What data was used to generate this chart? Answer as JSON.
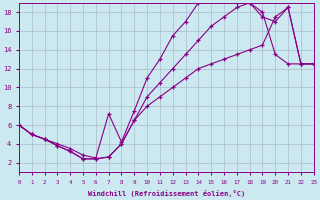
{
  "xlabel": "Windchill (Refroidissement éolien,°C)",
  "background_color": "#cce8f0",
  "grid_color": "#aabccc",
  "line_color": "#880088",
  "xlim": [
    0,
    23
  ],
  "ylim": [
    1,
    19
  ],
  "xticks": [
    0,
    1,
    2,
    3,
    4,
    5,
    6,
    7,
    8,
    9,
    10,
    11,
    12,
    13,
    14,
    15,
    16,
    17,
    18,
    19,
    20,
    21,
    22,
    23
  ],
  "yticks": [
    2,
    4,
    6,
    8,
    10,
    12,
    14,
    16,
    18
  ],
  "curve_upper_x": [
    0,
    1,
    2,
    3,
    4,
    5,
    6,
    7,
    8,
    9,
    10,
    11,
    12,
    13,
    14,
    15,
    16,
    17,
    18,
    19,
    20,
    21,
    22,
    23
  ],
  "curve_upper_y": [
    6.0,
    5.0,
    4.5,
    4.0,
    3.5,
    2.8,
    2.5,
    7.2,
    4.2,
    7.5,
    11.0,
    13.0,
    15.5,
    17.0,
    19.0,
    19.3,
    19.3,
    19.0,
    19.0,
    18.0,
    13.5,
    12.5,
    12.5,
    12.5
  ],
  "curve_mid_x": [
    0,
    1,
    2,
    3,
    4,
    5,
    6,
    7,
    8,
    9,
    10,
    11,
    12,
    13,
    14,
    15,
    16,
    17,
    18,
    19,
    20,
    21,
    22,
    23
  ],
  "curve_mid_y": [
    6.0,
    5.0,
    4.5,
    3.8,
    3.2,
    2.4,
    2.4,
    2.6,
    4.0,
    6.5,
    9.0,
    10.5,
    12.0,
    13.5,
    15.0,
    16.5,
    17.5,
    18.5,
    19.0,
    17.5,
    17.0,
    18.5,
    12.5,
    12.5
  ],
  "curve_lower_x": [
    0,
    1,
    2,
    3,
    4,
    5,
    6,
    7,
    8,
    9,
    10,
    11,
    12,
    13,
    14,
    15,
    16,
    17,
    18,
    19,
    20,
    21,
    22,
    23
  ],
  "curve_lower_y": [
    6.0,
    5.0,
    4.5,
    3.8,
    3.2,
    2.4,
    2.4,
    2.6,
    4.0,
    6.5,
    8.0,
    9.0,
    10.0,
    11.0,
    12.0,
    12.5,
    13.0,
    13.5,
    14.0,
    14.5,
    17.5,
    18.5,
    12.5,
    12.5
  ]
}
